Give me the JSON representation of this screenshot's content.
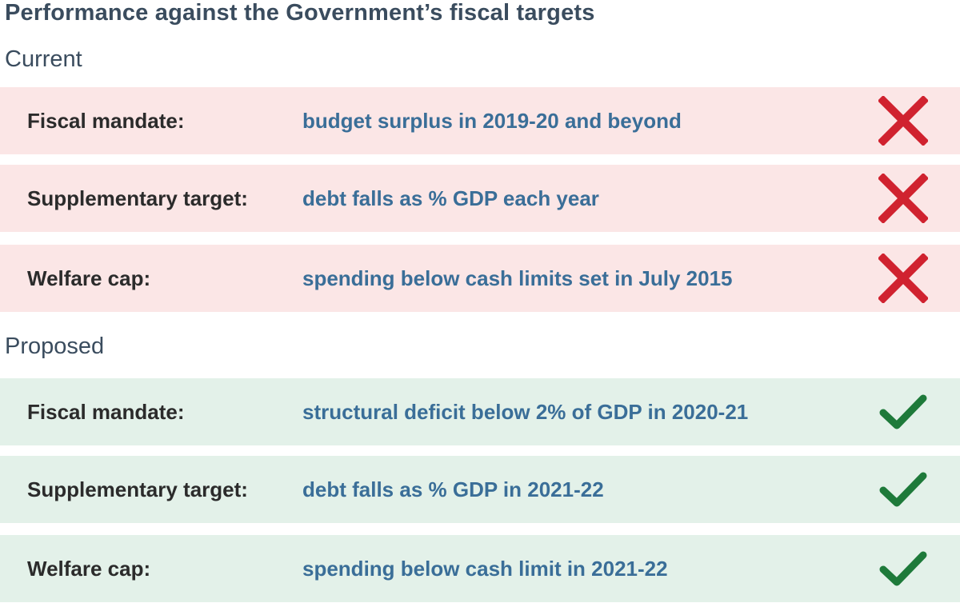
{
  "title": "Performance against the Government’s fiscal targets",
  "current": {
    "heading": "Current",
    "rows": [
      {
        "label": "Fiscal mandate:",
        "description": "budget surplus in 2019-20 and beyond",
        "status": "cross-icon"
      },
      {
        "label": "Supplementary target:",
        "description": "debt falls as % GDP each year",
        "status": "cross-icon"
      },
      {
        "label": "Welfare cap:",
        "description": "spending below cash limits set in July 2015",
        "status": "cross-icon"
      }
    ]
  },
  "proposed": {
    "heading": "Proposed",
    "rows": [
      {
        "label": "Fiscal mandate:",
        "description": "structural deficit below 2% of GDP in 2020-21",
        "status": "check-icon"
      },
      {
        "label": "Supplementary target:",
        "description": "debt falls as % GDP in 2021-22",
        "status": "check-icon"
      },
      {
        "label": "Welfare cap:",
        "description": "spending below cash limit in 2021-22",
        "status": "check-icon"
      }
    ]
  },
  "colors": {
    "title": "#3a4c5e",
    "label": "#2b2b2b",
    "description": "#3a6e98",
    "current_row_bg": "#fbe6e6",
    "proposed_row_bg": "#e3f1e9",
    "cross": "#d0222f",
    "check": "#1e7a3a"
  }
}
